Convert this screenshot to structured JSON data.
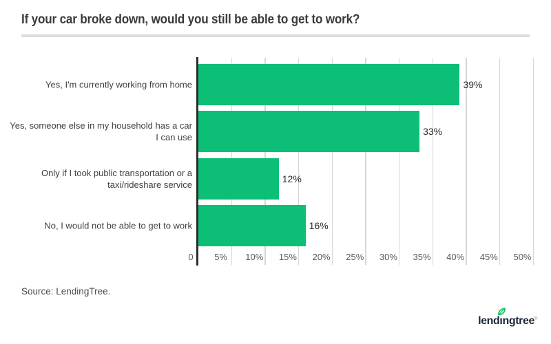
{
  "header": {
    "title": "If your car broke down, would you still be able to get to work?"
  },
  "chart_data": {
    "type": "bar",
    "orientation": "horizontal",
    "title": "If your car broke down, would you still be able to get to work?",
    "categories": [
      "Yes, I'm currently working from home",
      "Yes, someone else in my household has a car I can use",
      "Only if I took public transportation or a taxi/rideshare service",
      "No, I would not be able to get to work"
    ],
    "label_lines": [
      [
        "Yes, I'm currently working from home"
      ],
      [
        "Yes, someone else in my household has a car",
        "I can use"
      ],
      [
        "Only if I took public transportation or a",
        "taxi/rideshare service"
      ],
      [
        "No, I would not be able to get to work"
      ]
    ],
    "values": [
      39,
      33,
      12,
      16
    ],
    "value_labels": [
      "39%",
      "33%",
      "12%",
      "16%"
    ],
    "x_axis": {
      "min": 0,
      "max": 50,
      "tick_step": 5,
      "tick_labels": [
        "0",
        "5%",
        "10%",
        "15%",
        "20%",
        "25%",
        "30%",
        "35%",
        "40%",
        "45%",
        "50%"
      ],
      "grid": true
    },
    "legend": null,
    "bar_color": "#0dbe76",
    "gridline_color": "#d6d6d6",
    "axis_line_color": "#2d2d2d"
  },
  "footer": {
    "source": "Source: LendingTree.",
    "logo": {
      "brand": "lendingtree",
      "pre": "lend",
      "dotless_i": "ı",
      "post": "ngtree",
      "mark": "®",
      "leaf_color": "#15c05f",
      "text_color": "#1d2939"
    }
  }
}
